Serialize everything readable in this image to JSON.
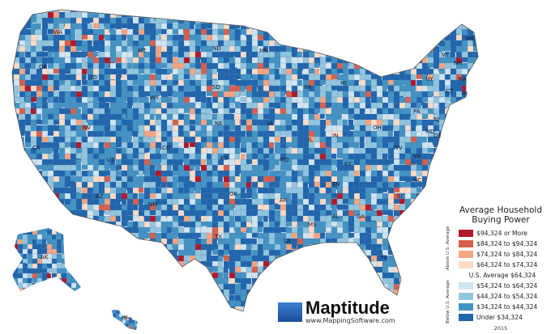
{
  "legend": {
    "title_line1": "Average Household",
    "title_line2": "Buying Power",
    "above_label": "Above U.S. Average",
    "below_label": "Below U.S. Average",
    "average_label": "U.S. Average $64,324",
    "year": "2015",
    "above": [
      {
        "label": "$94,324 or More",
        "color": "#b2182b"
      },
      {
        "label": "$84,324 to $94,324",
        "color": "#d6604d"
      },
      {
        "label": "$74,324 to $84,324",
        "color": "#f4a582"
      },
      {
        "label": "$64,324 to $74,324",
        "color": "#fddbc7"
      }
    ],
    "below": [
      {
        "label": "$54,324 to $64,324",
        "color": "#d1e5f0"
      },
      {
        "label": "$44,324 to $54,324",
        "color": "#92c5de"
      },
      {
        "label": "$34,324 to $44,324",
        "color": "#4393c3"
      },
      {
        "label": "Under $34,324",
        "color": "#2166ac"
      }
    ]
  },
  "logo": {
    "name": "Maptitude",
    "url": "www.MappingSoftware.com"
  },
  "states": [
    "WA",
    "OR",
    "CA",
    "NV",
    "ID",
    "MT",
    "WY",
    "UT",
    "AZ",
    "NM",
    "CO",
    "ND",
    "SD",
    "NE",
    "KS",
    "OK",
    "TX",
    "MN",
    "IA",
    "MO",
    "AR",
    "LA",
    "WI",
    "IL",
    "MS",
    "MI",
    "IN",
    "KY",
    "TN",
    "AL",
    "GA",
    "FL",
    "OH",
    "WV",
    "VA",
    "NC",
    "SC",
    "PA",
    "NY",
    "VT",
    "NH",
    "ME",
    "MA",
    "CT",
    "RI",
    "NJ",
    "DE",
    "MD",
    "AK",
    "HI"
  ]
}
